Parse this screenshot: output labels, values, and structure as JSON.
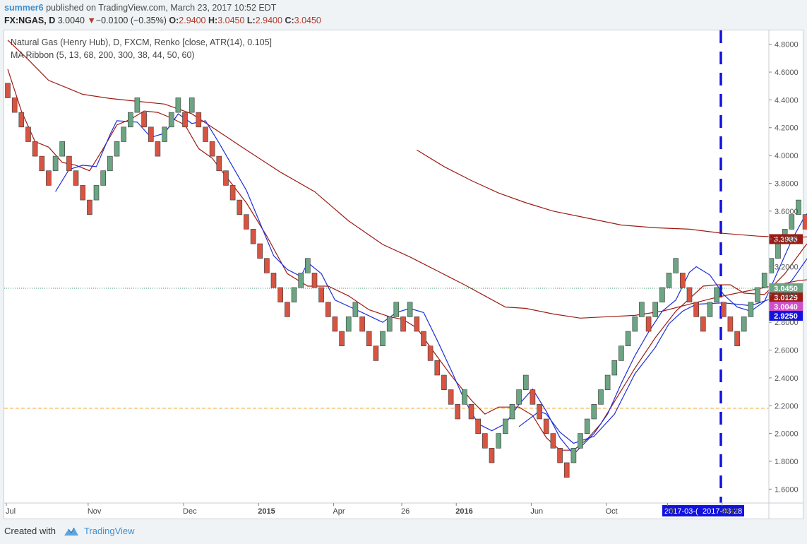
{
  "header": {
    "author": "summer6",
    "publish_text": " published on TradingView.com, March 23, 2017 10:52 EDT",
    "symbol": "FX:NGAS, D",
    "last": "3.0040",
    "change_arrow": "▼",
    "change": "−0.0100 (−0.35%)",
    "o_label": "O:",
    "o_value": "2.9400",
    "h_label": "H:",
    "h_value": "3.0450",
    "l_label": "L:",
    "l_value": "2.9400",
    "c_label": "C:",
    "c_value": "3.0450"
  },
  "legend": {
    "line1": "Natural Gas (Henry Hub), D, FXCM, Renko [close, ATR(14), 0.105]",
    "line2": "MA Ribbon (5, 13, 68, 200, 300, 38, 44, 50, 60)"
  },
  "footer": {
    "created_with": "Created with",
    "brand": "TradingView"
  },
  "colors": {
    "up_brick": "#6ba583",
    "down_brick": "#d75442",
    "brick_border": "#3a3a3a",
    "ma_blue": "#1f2fd6",
    "ma_red": "#9b1c14",
    "dashed_orange": "#f0a020",
    "marker_blue": "#1212e0"
  },
  "chart_data": {
    "type": "renko",
    "ylim": [
      1.5,
      4.9
    ],
    "brick_size": 0.105,
    "y_ticks": [
      "1.6000",
      "1.8000",
      "2.0000",
      "2.2000",
      "2.4000",
      "2.6000",
      "2.8000",
      "3.0000",
      "3.2000",
      "3.4000",
      "3.6000",
      "3.8000",
      "4.0000",
      "4.2000",
      "4.4000",
      "4.6000",
      "4.8000"
    ],
    "x_labels": [
      "Jul",
      "Nov",
      "Dec",
      "2015",
      "Apr",
      "26",
      "2016",
      "Jun",
      "Oct",
      "28",
      "2017",
      "Mar"
    ],
    "x_label_positions": [
      0,
      12,
      26,
      37,
      48,
      58,
      66,
      77,
      88,
      97,
      105,
      130
    ],
    "bricks": [
      {
        "dir": "down",
        "top": 4.52
      },
      {
        "dir": "down",
        "top": 4.415
      },
      {
        "dir": "down",
        "top": 4.31
      },
      {
        "dir": "down",
        "top": 4.205
      },
      {
        "dir": "down",
        "top": 4.1
      },
      {
        "dir": "down",
        "top": 3.995
      },
      {
        "dir": "down",
        "top": 3.89
      },
      {
        "dir": "up",
        "top": 3.995
      },
      {
        "dir": "up",
        "top": 4.1
      },
      {
        "dir": "down",
        "top": 3.995
      },
      {
        "dir": "down",
        "top": 3.89
      },
      {
        "dir": "down",
        "top": 3.785
      },
      {
        "dir": "down",
        "top": 3.68
      },
      {
        "dir": "up",
        "top": 3.785
      },
      {
        "dir": "up",
        "top": 3.89
      },
      {
        "dir": "up",
        "top": 3.995
      },
      {
        "dir": "up",
        "top": 4.1
      },
      {
        "dir": "up",
        "top": 4.205
      },
      {
        "dir": "up",
        "top": 4.31
      },
      {
        "dir": "up",
        "top": 4.415
      },
      {
        "dir": "down",
        "top": 4.31
      },
      {
        "dir": "down",
        "top": 4.205
      },
      {
        "dir": "down",
        "top": 4.1
      },
      {
        "dir": "up",
        "top": 4.205
      },
      {
        "dir": "up",
        "top": 4.31
      },
      {
        "dir": "up",
        "top": 4.415
      },
      {
        "dir": "down",
        "top": 4.31
      },
      {
        "dir": "up",
        "top": 4.415
      },
      {
        "dir": "down",
        "top": 4.31
      },
      {
        "dir": "down",
        "top": 4.205
      },
      {
        "dir": "down",
        "top": 4.1
      },
      {
        "dir": "down",
        "top": 3.995
      },
      {
        "dir": "down",
        "top": 3.89
      },
      {
        "dir": "down",
        "top": 3.785
      },
      {
        "dir": "down",
        "top": 3.68
      },
      {
        "dir": "down",
        "top": 3.575
      },
      {
        "dir": "down",
        "top": 3.47
      },
      {
        "dir": "down",
        "top": 3.365
      },
      {
        "dir": "down",
        "top": 3.26
      },
      {
        "dir": "down",
        "top": 3.155
      },
      {
        "dir": "down",
        "top": 3.05
      },
      {
        "dir": "down",
        "top": 2.945
      },
      {
        "dir": "up",
        "top": 3.05
      },
      {
        "dir": "up",
        "top": 3.155
      },
      {
        "dir": "up",
        "top": 3.26
      },
      {
        "dir": "down",
        "top": 3.155
      },
      {
        "dir": "down",
        "top": 3.05
      },
      {
        "dir": "down",
        "top": 2.945
      },
      {
        "dir": "down",
        "top": 2.84
      },
      {
        "dir": "down",
        "top": 2.735
      },
      {
        "dir": "up",
        "top": 2.84
      },
      {
        "dir": "up",
        "top": 2.945
      },
      {
        "dir": "down",
        "top": 2.84
      },
      {
        "dir": "down",
        "top": 2.735
      },
      {
        "dir": "down",
        "top": 2.63
      },
      {
        "dir": "up",
        "top": 2.735
      },
      {
        "dir": "up",
        "top": 2.84
      },
      {
        "dir": "up",
        "top": 2.945
      },
      {
        "dir": "down",
        "top": 2.84
      },
      {
        "dir": "up",
        "top": 2.945
      },
      {
        "dir": "down",
        "top": 2.84
      },
      {
        "dir": "down",
        "top": 2.735
      },
      {
        "dir": "down",
        "top": 2.63
      },
      {
        "dir": "down",
        "top": 2.525
      },
      {
        "dir": "down",
        "top": 2.42
      },
      {
        "dir": "down",
        "top": 2.315
      },
      {
        "dir": "down",
        "top": 2.21
      },
      {
        "dir": "up",
        "top": 2.315
      },
      {
        "dir": "down",
        "top": 2.21
      },
      {
        "dir": "down",
        "top": 2.105
      },
      {
        "dir": "down",
        "top": 2.0
      },
      {
        "dir": "down",
        "top": 1.895
      },
      {
        "dir": "up",
        "top": 2.0
      },
      {
        "dir": "up",
        "top": 2.105
      },
      {
        "dir": "up",
        "top": 2.21
      },
      {
        "dir": "up",
        "top": 2.315
      },
      {
        "dir": "up",
        "top": 2.42
      },
      {
        "dir": "down",
        "top": 2.315
      },
      {
        "dir": "down",
        "top": 2.21
      },
      {
        "dir": "down",
        "top": 2.105
      },
      {
        "dir": "down",
        "top": 2.0
      },
      {
        "dir": "down",
        "top": 1.895
      },
      {
        "dir": "down",
        "top": 1.79
      },
      {
        "dir": "up",
        "top": 1.895
      },
      {
        "dir": "up",
        "top": 2.0
      },
      {
        "dir": "up",
        "top": 2.105
      },
      {
        "dir": "up",
        "top": 2.21
      },
      {
        "dir": "up",
        "top": 2.315
      },
      {
        "dir": "up",
        "top": 2.42
      },
      {
        "dir": "up",
        "top": 2.525
      },
      {
        "dir": "up",
        "top": 2.63
      },
      {
        "dir": "up",
        "top": 2.735
      },
      {
        "dir": "up",
        "top": 2.84
      },
      {
        "dir": "up",
        "top": 2.945
      },
      {
        "dir": "down",
        "top": 2.84
      },
      {
        "dir": "up",
        "top": 2.945
      },
      {
        "dir": "up",
        "top": 3.05
      },
      {
        "dir": "up",
        "top": 3.155
      },
      {
        "dir": "up",
        "top": 3.26
      },
      {
        "dir": "down",
        "top": 3.155
      },
      {
        "dir": "down",
        "top": 3.05
      },
      {
        "dir": "down",
        "top": 2.945
      },
      {
        "dir": "down",
        "top": 2.84
      },
      {
        "dir": "up",
        "top": 2.945
      },
      {
        "dir": "up",
        "top": 3.05
      },
      {
        "dir": "down",
        "top": 2.945
      },
      {
        "dir": "down",
        "top": 2.84
      },
      {
        "dir": "down",
        "top": 2.735
      },
      {
        "dir": "up",
        "top": 2.84
      },
      {
        "dir": "up",
        "top": 2.945
      },
      {
        "dir": "up",
        "top": 3.05
      },
      {
        "dir": "up",
        "top": 3.155
      },
      {
        "dir": "up",
        "top": 3.26
      },
      {
        "dir": "up",
        "top": 3.365
      },
      {
        "dir": "up",
        "top": 3.47
      },
      {
        "dir": "up",
        "top": 3.575
      },
      {
        "dir": "up",
        "top": 3.68
      },
      {
        "dir": "down",
        "top": 3.575
      },
      {
        "dir": "up",
        "top": 3.68
      },
      {
        "dir": "up",
        "top": 3.785
      },
      {
        "dir": "down",
        "top": 3.68
      },
      {
        "dir": "down",
        "top": 3.575
      },
      {
        "dir": "down",
        "top": 3.47
      },
      {
        "dir": "down",
        "top": 3.365
      },
      {
        "dir": "up",
        "top": 3.47
      },
      {
        "dir": "down",
        "top": 3.365
      },
      {
        "dir": "down",
        "top": 3.26
      },
      {
        "dir": "down",
        "top": 3.155
      },
      {
        "dir": "down",
        "top": 3.05
      },
      {
        "dir": "down",
        "top": 2.945
      },
      {
        "dir": "down",
        "top": 2.84
      },
      {
        "dir": "up",
        "top": 2.945
      },
      {
        "dir": "up",
        "top": 3.05
      },
      {
        "dir": "up",
        "top": 3.155
      }
    ],
    "ma_blue_1": [
      [
        7,
        3.74
      ],
      [
        9,
        3.9
      ],
      [
        11,
        3.93
      ],
      [
        13,
        3.92
      ],
      [
        15,
        4.15
      ],
      [
        16,
        4.25
      ],
      [
        19,
        4.24
      ],
      [
        21,
        4.13
      ],
      [
        23,
        4.16
      ],
      [
        25,
        4.3
      ],
      [
        27,
        4.23
      ],
      [
        29,
        4.25
      ],
      [
        31,
        4.09
      ],
      [
        35,
        3.75
      ],
      [
        39,
        3.28
      ],
      [
        41,
        3.18
      ],
      [
        43,
        3.13
      ],
      [
        44,
        3.23
      ],
      [
        46,
        3.15
      ],
      [
        48,
        2.96
      ],
      [
        52,
        2.87
      ],
      [
        55,
        2.8
      ],
      [
        57,
        2.87
      ],
      [
        59,
        2.9
      ],
      [
        61,
        2.87
      ],
      [
        63,
        2.67
      ],
      [
        65,
        2.46
      ],
      [
        67,
        2.24
      ],
      [
        69,
        2.07
      ],
      [
        71,
        2.02
      ],
      [
        73,
        2.07
      ],
      [
        75,
        2.21
      ],
      [
        77,
        2.32
      ],
      [
        79,
        2.16
      ],
      [
        81,
        1.97
      ],
      [
        83,
        1.85
      ],
      [
        86,
        2.0
      ],
      [
        88,
        2.14
      ],
      [
        90,
        2.36
      ],
      [
        92,
        2.56
      ],
      [
        94,
        2.73
      ],
      [
        96,
        2.88
      ],
      [
        98,
        2.96
      ],
      [
        100,
        3.16
      ],
      [
        101,
        3.2
      ],
      [
        103,
        3.14
      ],
      [
        105,
        3.0
      ],
      [
        107,
        2.91
      ],
      [
        109,
        2.88
      ],
      [
        111,
        2.95
      ],
      [
        113,
        3.17
      ],
      [
        115,
        3.39
      ],
      [
        117,
        3.57
      ],
      [
        119,
        3.65
      ],
      [
        121,
        3.62
      ],
      [
        123,
        3.63
      ],
      [
        125,
        3.48
      ],
      [
        129,
        2.93
      ],
      [
        132,
        2.88
      ],
      [
        133,
        2.97
      ],
      [
        134,
        3.06
      ]
    ],
    "ma_blue_2": [
      [
        75,
        2.05
      ],
      [
        78,
        2.16
      ],
      [
        79,
        2.14
      ],
      [
        81,
        2.01
      ],
      [
        83,
        1.93
      ],
      [
        86,
        1.98
      ],
      [
        89,
        2.14
      ],
      [
        92,
        2.43
      ],
      [
        95,
        2.62
      ],
      [
        97,
        2.79
      ],
      [
        99,
        2.88
      ],
      [
        101,
        2.93
      ],
      [
        105,
        2.94
      ],
      [
        107,
        2.93
      ],
      [
        109,
        2.92
      ],
      [
        112,
        2.97
      ],
      [
        115,
        3.1
      ],
      [
        118,
        3.31
      ],
      [
        120,
        3.47
      ],
      [
        122,
        3.54
      ],
      [
        124,
        3.53
      ],
      [
        126,
        3.43
      ],
      [
        128,
        3.28
      ],
      [
        130,
        3.15
      ],
      [
        132,
        3.07
      ],
      [
        134,
        3.04
      ]
    ],
    "ma_red_1": [
      [
        0,
        4.62
      ],
      [
        2,
        4.32
      ],
      [
        4,
        4.1
      ],
      [
        6,
        4.06
      ],
      [
        8,
        3.95
      ],
      [
        10,
        3.93
      ],
      [
        12,
        3.89
      ],
      [
        14,
        4.05
      ],
      [
        16,
        4.22
      ],
      [
        18,
        4.26
      ],
      [
        20,
        4.32
      ],
      [
        22,
        4.31
      ],
      [
        24,
        4.27
      ],
      [
        26,
        4.22
      ],
      [
        28,
        4.05
      ],
      [
        30,
        3.98
      ],
      [
        32,
        3.85
      ],
      [
        35,
        3.66
      ],
      [
        38,
        3.42
      ],
      [
        41,
        3.15
      ],
      [
        44,
        3.06
      ],
      [
        47,
        3.06
      ],
      [
        50,
        2.99
      ],
      [
        53,
        2.89
      ],
      [
        56,
        2.84
      ],
      [
        58,
        2.82
      ],
      [
        60,
        2.76
      ],
      [
        62,
        2.62
      ],
      [
        65,
        2.42
      ],
      [
        68,
        2.24
      ],
      [
        70,
        2.14
      ],
      [
        72,
        2.19
      ],
      [
        75,
        2.19
      ],
      [
        77,
        2.13
      ],
      [
        79,
        1.97
      ],
      [
        81,
        1.88
      ],
      [
        83,
        1.88
      ],
      [
        85,
        1.96
      ],
      [
        87,
        2.07
      ],
      [
        89,
        2.23
      ],
      [
        92,
        2.47
      ],
      [
        95,
        2.69
      ],
      [
        98,
        2.88
      ],
      [
        100,
        2.97
      ],
      [
        102,
        3.06
      ],
      [
        104,
        3.07
      ],
      [
        106,
        3.07
      ],
      [
        108,
        3.01
      ],
      [
        111,
        3.0
      ],
      [
        114,
        3.15
      ],
      [
        117,
        3.35
      ],
      [
        119,
        3.46
      ],
      [
        121,
        3.5
      ],
      [
        123,
        3.51
      ],
      [
        125,
        3.45
      ],
      [
        127,
        3.33
      ],
      [
        129,
        3.15
      ],
      [
        131,
        3.06
      ],
      [
        133,
        3.02
      ],
      [
        134,
        3.03
      ]
    ],
    "ma_red_2": [
      [
        0,
        4.83
      ],
      [
        3,
        4.69
      ],
      [
        6,
        4.54
      ],
      [
        9,
        4.48
      ],
      [
        11,
        4.44
      ],
      [
        15,
        4.41
      ],
      [
        19,
        4.39
      ],
      [
        23,
        4.37
      ],
      [
        27,
        4.3
      ],
      [
        31,
        4.17
      ],
      [
        35,
        4.04
      ],
      [
        40,
        3.88
      ],
      [
        45,
        3.74
      ],
      [
        50,
        3.53
      ],
      [
        55,
        3.36
      ],
      [
        59,
        3.27
      ],
      [
        63,
        3.17
      ],
      [
        67,
        3.07
      ],
      [
        70,
        2.99
      ],
      [
        73,
        2.91
      ],
      [
        76,
        2.9
      ],
      [
        80,
        2.86
      ],
      [
        84,
        2.83
      ],
      [
        88,
        2.84
      ],
      [
        92,
        2.85
      ],
      [
        96,
        2.88
      ],
      [
        100,
        2.93
      ],
      [
        104,
        2.98
      ],
      [
        108,
        3.02
      ],
      [
        112,
        3.06
      ],
      [
        116,
        3.1
      ],
      [
        120,
        3.12
      ],
      [
        124,
        3.12
      ],
      [
        128,
        3.08
      ],
      [
        131,
        3.04
      ],
      [
        134,
        3.03
      ]
    ],
    "ma_red_3": [
      [
        60,
        4.04
      ],
      [
        64,
        3.92
      ],
      [
        68,
        3.82
      ],
      [
        72,
        3.73
      ],
      [
        76,
        3.66
      ],
      [
        80,
        3.6
      ],
      [
        85,
        3.55
      ],
      [
        90,
        3.5
      ],
      [
        95,
        3.48
      ],
      [
        100,
        3.47
      ],
      [
        105,
        3.44
      ],
      [
        110,
        3.42
      ],
      [
        115,
        3.41
      ],
      [
        120,
        3.42
      ],
      [
        125,
        3.41
      ],
      [
        130,
        3.39
      ],
      [
        134,
        3.39
      ]
    ],
    "horizontal_lines": [
      {
        "value": 2.1816,
        "label": "2.1816",
        "style": "dashed",
        "color": "#f0a020"
      },
      {
        "value": 3.045,
        "label": "3.0450",
        "style": "dotted",
        "color": "#3d8f6b"
      }
    ],
    "price_labels": [
      {
        "value": 3.3985,
        "label": "3.3985",
        "color": "#9b1c14"
      },
      {
        "value": 3.004,
        "label": "3.0040",
        "color": "#d04fc9"
      },
      {
        "value": 3.045,
        "label": "3.0450",
        "color": "#6ba583"
      },
      {
        "value": 3.0129,
        "label": "3.0129",
        "color": "#9b1c14"
      },
      {
        "value": 2.925,
        "label": "2.9250",
        "color": "#1212e0"
      }
    ],
    "date_labels": [
      "2017-03-(",
      "2017-03-28"
    ]
  }
}
